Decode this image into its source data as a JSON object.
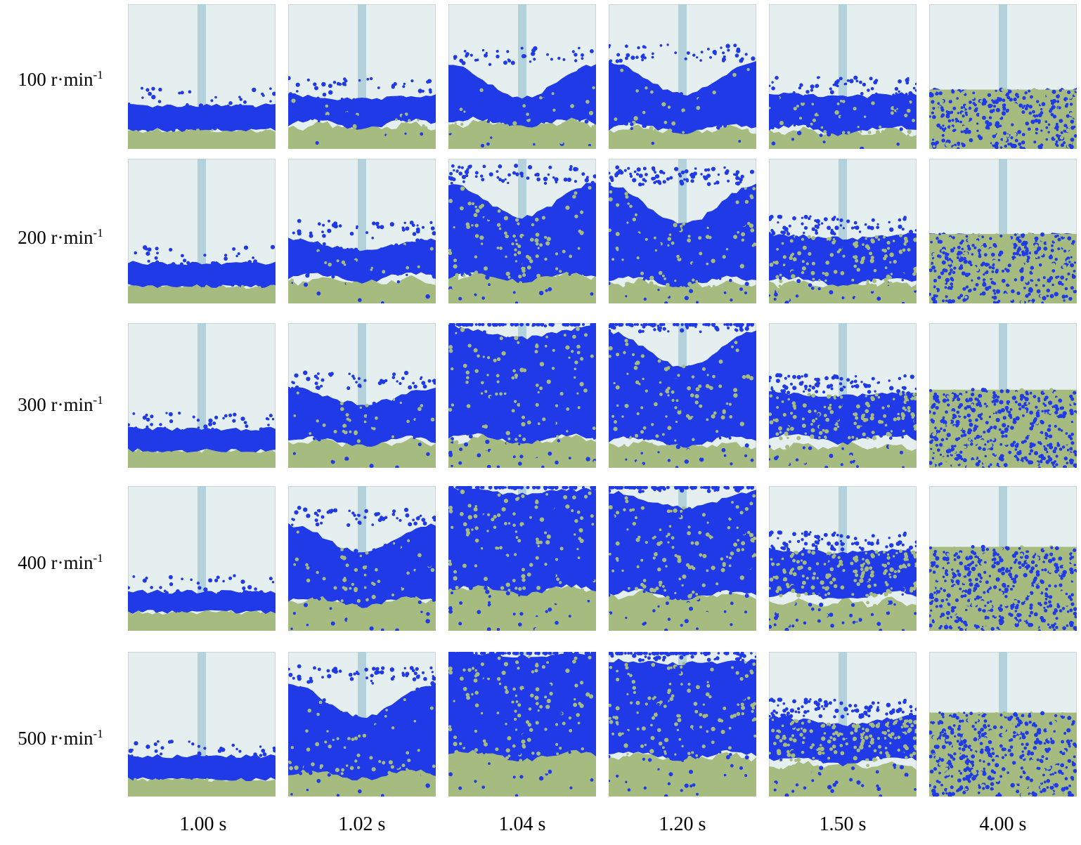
{
  "figure": {
    "rows": [
      {
        "label_base": "100 r·min",
        "label_exp": "-1",
        "speed": 100
      },
      {
        "label_base": "200 r·min",
        "label_exp": "-1",
        "speed": 200
      },
      {
        "label_base": "300 r·min",
        "label_exp": "-1",
        "speed": 300
      },
      {
        "label_base": "400 r·min",
        "label_exp": "-1",
        "speed": 400
      },
      {
        "label_base": "500 r·min",
        "label_exp": "-1",
        "speed": 500
      }
    ],
    "columns": [
      {
        "label": "1.00 s"
      },
      {
        "label": "1.02 s"
      },
      {
        "label": "1.04 s"
      },
      {
        "label": "1.20 s"
      },
      {
        "label": "1.50 s"
      },
      {
        "label": "4.00 s"
      }
    ]
  },
  "colors": {
    "background": "#e6eff0",
    "shaft": "#a9cdd8",
    "blue_particles": "#1f3ae6",
    "green_particles": "#a6bb7f",
    "frame": "#c8d4d6"
  }
}
